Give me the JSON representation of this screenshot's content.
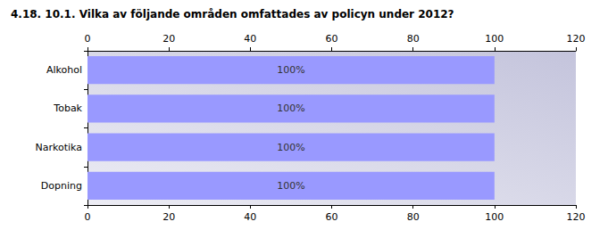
{
  "chart_data": {
    "type": "bar",
    "orientation": "horizontal",
    "title": "4.18. 10.1. Vilka av följande områden omfattades av policyn under 2012?",
    "categories": [
      "Alkohol",
      "Tobak",
      "Narkotika",
      "Dopning"
    ],
    "values": [
      100,
      100,
      100,
      100
    ],
    "value_labels": [
      "100%",
      "100%",
      "100%",
      "100%"
    ],
    "data_labels": true,
    "color": "#9999ff",
    "xlim": [
      0,
      120
    ],
    "xticks": [
      0,
      20,
      40,
      60,
      80,
      100,
      120
    ],
    "grid": false
  }
}
